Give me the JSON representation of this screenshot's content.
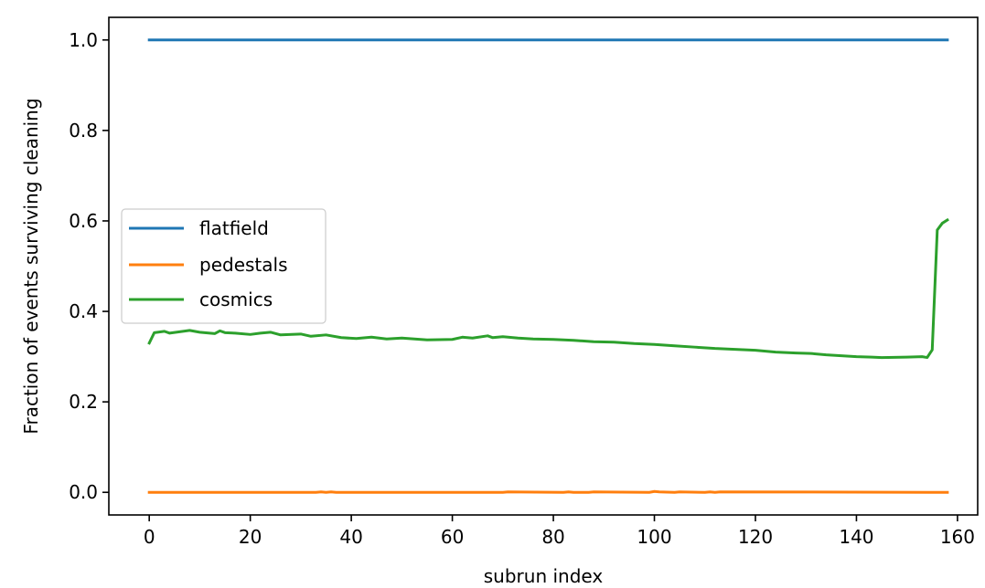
{
  "chart_data": {
    "type": "line",
    "xlabel": "subrun index",
    "ylabel": "Fraction of events surviving cleaning",
    "xlim": [
      -8,
      164
    ],
    "ylim": [
      -0.05,
      1.05
    ],
    "xticks": [
      0,
      20,
      40,
      60,
      80,
      100,
      120,
      140,
      160
    ],
    "yticks": [
      0.0,
      0.2,
      0.4,
      0.6,
      0.8,
      1.0
    ],
    "legend_position": "center-left",
    "series": [
      {
        "name": "flatfield",
        "color": "#1f77b4",
        "x": [
          0,
          158
        ],
        "y": [
          1.0,
          1.0
        ]
      },
      {
        "name": "pedestals",
        "color": "#ff7f0e",
        "x": [
          0,
          33,
          34,
          35,
          36,
          37,
          70,
          71,
          82,
          83,
          84,
          87,
          88,
          99,
          100,
          101,
          104,
          105,
          110,
          111,
          112,
          113,
          158
        ],
        "y": [
          0.0,
          0.0,
          0.001,
          0.0,
          0.001,
          0.0,
          0.0,
          0.001,
          0.0,
          0.001,
          0.0,
          0.0,
          0.001,
          0.0,
          0.002,
          0.001,
          0.0,
          0.001,
          0.0,
          0.001,
          0.0,
          0.001,
          0.0
        ]
      },
      {
        "name": "cosmics",
        "color": "#2ca02c",
        "x": [
          0,
          1,
          3,
          4,
          6,
          8,
          10,
          13,
          14,
          15,
          17,
          20,
          22,
          24,
          26,
          30,
          32,
          35,
          38,
          41,
          44,
          47,
          50,
          55,
          60,
          62,
          64,
          67,
          68,
          70,
          73,
          76,
          80,
          84,
          88,
          92,
          96,
          100,
          104,
          108,
          112,
          116,
          120,
          124,
          128,
          131,
          134,
          137,
          140,
          143,
          145,
          150,
          153,
          154,
          155,
          156,
          157,
          158
        ],
        "y": [
          0.33,
          0.353,
          0.356,
          0.352,
          0.355,
          0.358,
          0.354,
          0.351,
          0.357,
          0.353,
          0.352,
          0.349,
          0.352,
          0.354,
          0.348,
          0.35,
          0.345,
          0.348,
          0.342,
          0.34,
          0.343,
          0.339,
          0.341,
          0.337,
          0.338,
          0.343,
          0.341,
          0.346,
          0.342,
          0.344,
          0.341,
          0.339,
          0.338,
          0.336,
          0.333,
          0.332,
          0.329,
          0.327,
          0.324,
          0.321,
          0.318,
          0.316,
          0.314,
          0.31,
          0.308,
          0.307,
          0.304,
          0.302,
          0.3,
          0.299,
          0.298,
          0.299,
          0.3,
          0.298,
          0.315,
          0.58,
          0.595,
          0.602
        ]
      }
    ]
  }
}
